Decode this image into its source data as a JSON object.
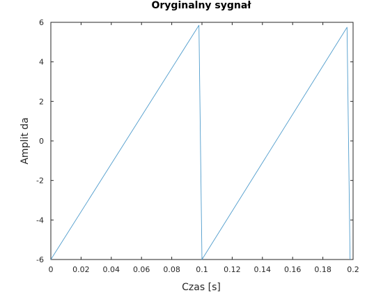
{
  "chart_data": {
    "type": "line",
    "title": "Oryginalny sygnał",
    "xlabel": "Czas [s]",
    "ylabel": "Amplit da",
    "xlim": [
      0,
      0.2
    ],
    "ylim": [
      -6,
      6
    ],
    "xticks": [
      0,
      0.02,
      0.04,
      0.06,
      0.08,
      0.1,
      0.12,
      0.14,
      0.16,
      0.18,
      0.2
    ],
    "xtick_labels": [
      "0",
      "0.02",
      "0.04",
      "0.06",
      "0.08",
      "0.1",
      "0.12",
      "0.14",
      "0.16",
      "0.18",
      "0.2"
    ],
    "yticks": [
      -6,
      -4,
      -2,
      0,
      2,
      4,
      6
    ],
    "ytick_labels": [
      "-6",
      "-4",
      "-2",
      "0",
      "2",
      "4",
      "6"
    ],
    "grid": false,
    "series": [
      {
        "color": "#4f9ccc",
        "x": [
          0,
          0.098,
          0.1,
          0.196,
          0.198
        ],
        "y": [
          -6,
          5.85,
          -6,
          5.75,
          -6
        ]
      }
    ]
  }
}
